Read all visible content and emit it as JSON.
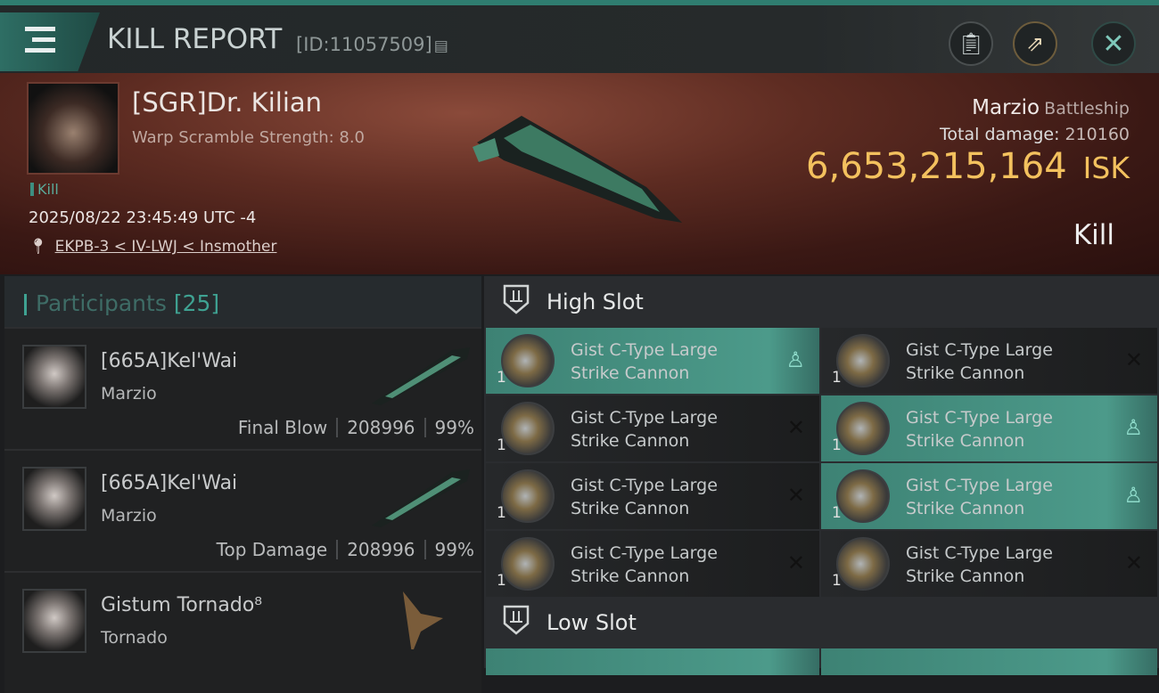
{
  "header": {
    "title": "KILL REPORT",
    "id": "[ID:11057509]",
    "icons": [
      "menu-icon",
      "copy-icon",
      "clipboard-icon",
      "share-icon",
      "close-icon"
    ]
  },
  "victim": {
    "name": "[SGR]Dr. Kilian",
    "warp_scramble": "Warp Scramble Strength: 8.0",
    "tag": "Kill",
    "time": "2025/08/22 23:45:49 UTC -4",
    "location": "EKPB-3 < IV-LWJ < Insmother",
    "ship": "Marzio",
    "ship_class": "Battleship",
    "total_damage_label": "Total damage:",
    "total_damage": "210160",
    "isk_value": "6,653,215,164",
    "isk_unit": "ISK",
    "outcome": "Kill"
  },
  "participants": {
    "label": "Participants",
    "count": "[25]",
    "rows": [
      {
        "name": "[665A]Kel'Wai",
        "ship": "Marzio",
        "role": "Final Blow",
        "damage": "208996",
        "percent": "99%"
      },
      {
        "name": "[665A]Kel'Wai",
        "ship": "Marzio",
        "role": "Top Damage",
        "damage": "208996",
        "percent": "99%"
      },
      {
        "name": "Gistum Tornado⁸",
        "ship": "Tornado",
        "role": "",
        "damage": "",
        "percent": ""
      }
    ]
  },
  "slots": [
    {
      "label": "High Slot",
      "modules": [
        {
          "qty": "1",
          "name": "Gist C-Type Large Strike Cannon",
          "state": "dropped"
        },
        {
          "qty": "1",
          "name": "Gist C-Type Large Strike Cannon",
          "state": "destroyed"
        },
        {
          "qty": "1",
          "name": "Gist C-Type Large Strike Cannon",
          "state": "destroyed"
        },
        {
          "qty": "1",
          "name": "Gist C-Type Large Strike Cannon",
          "state": "dropped"
        },
        {
          "qty": "1",
          "name": "Gist C-Type Large Strike Cannon",
          "state": "destroyed"
        },
        {
          "qty": "1",
          "name": "Gist C-Type Large Strike Cannon",
          "state": "dropped"
        },
        {
          "qty": "1",
          "name": "Gist C-Type Large Strike Cannon",
          "state": "destroyed"
        },
        {
          "qty": "1",
          "name": "Gist C-Type Large Strike Cannon",
          "state": "destroyed"
        }
      ]
    },
    {
      "label": "Low Slot",
      "modules": []
    }
  ],
  "colors": {
    "accent": "#3fa292",
    "isk": "#f3c15e",
    "fitted_row": "#4c9a8a"
  }
}
